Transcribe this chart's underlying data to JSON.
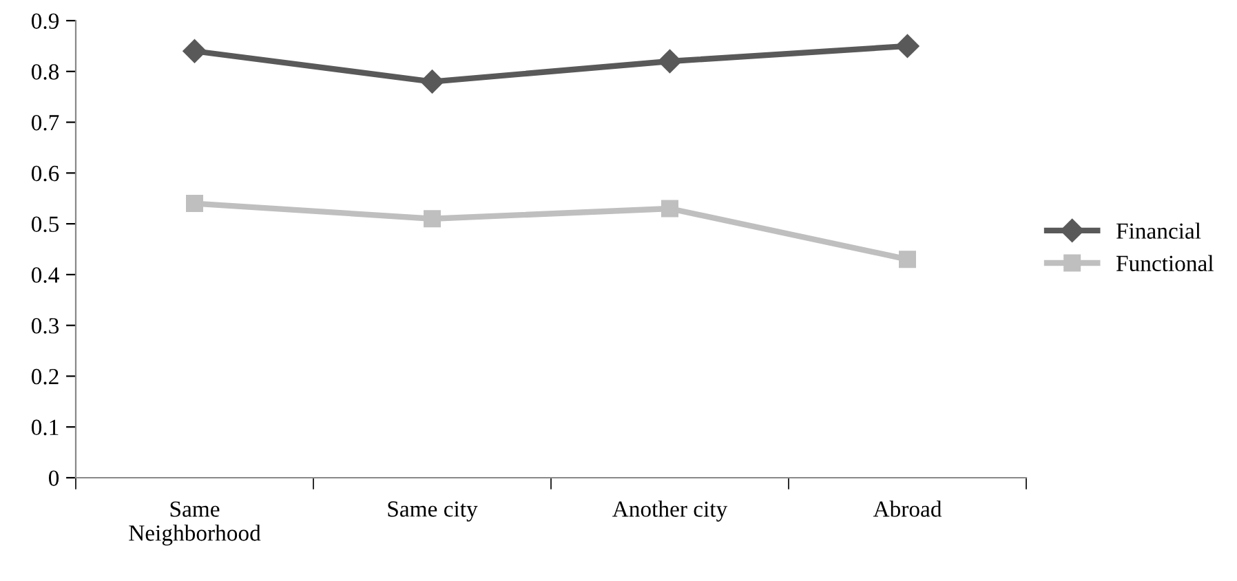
{
  "chart_data": {
    "type": "line",
    "categories": [
      "Same\nNeighborhood",
      "Same city",
      "Another city",
      "Abroad"
    ],
    "series": [
      {
        "name": "Financial",
        "color": "#595959",
        "marker": "diamond",
        "values": [
          0.84,
          0.78,
          0.82,
          0.85
        ]
      },
      {
        "name": "Functional",
        "color": "#bfbfbf",
        "marker": "square",
        "values": [
          0.54,
          0.51,
          0.53,
          0.43
        ]
      }
    ],
    "ylim": [
      0,
      0.9
    ],
    "yticks": [
      0,
      0.1,
      0.2,
      0.3,
      0.4,
      0.5,
      0.6,
      0.7,
      0.8,
      0.9
    ],
    "grid": false,
    "legend": "right",
    "line_style": "solid"
  }
}
